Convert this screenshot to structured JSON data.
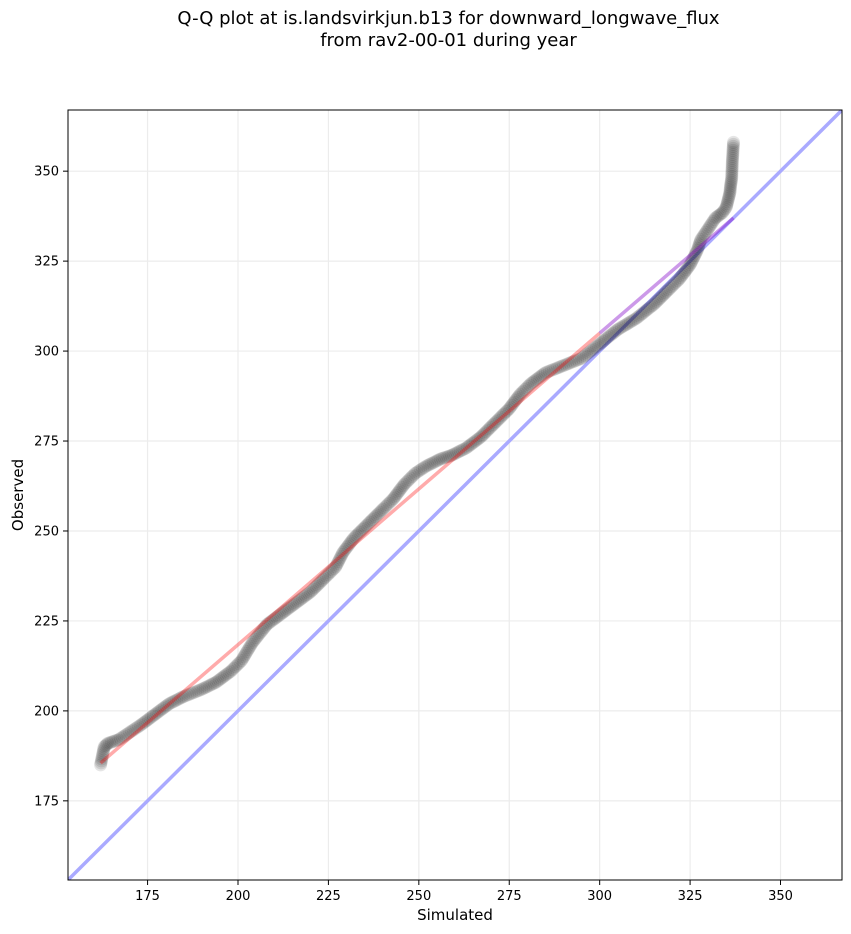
{
  "chart_data": {
    "type": "scatter",
    "title_line1": "Q-Q plot at is.landsvirkjun.b13 for downward_longwave_flux",
    "title_line2": "from rav2-00-01 during year",
    "xlabel": "Simulated",
    "ylabel": "Observed",
    "xlim": [
      153,
      367
    ],
    "ylim": [
      153,
      367
    ],
    "xticks": [
      175,
      200,
      225,
      250,
      275,
      300,
      325,
      350
    ],
    "yticks": [
      175,
      200,
      225,
      250,
      275,
      300,
      325,
      350
    ],
    "grid": true,
    "reference_line": {
      "from": [
        153,
        153
      ],
      "to": [
        367,
        367
      ],
      "color": "#aaaaff"
    },
    "fit_line": {
      "from": [
        162,
        185.5
      ],
      "to": [
        337,
        337
      ],
      "color": "#ff0000"
    },
    "fit_line_upper_color": "#7f00c8",
    "marker_color": "#000000",
    "qq_curve": [
      [
        162,
        185
      ],
      [
        163,
        190
      ],
      [
        164,
        191
      ],
      [
        167,
        192
      ],
      [
        170,
        194
      ],
      [
        173,
        196
      ],
      [
        177,
        199
      ],
      [
        181,
        202
      ],
      [
        185,
        204
      ],
      [
        190,
        206
      ],
      [
        194,
        208
      ],
      [
        198,
        211
      ],
      [
        201,
        214
      ],
      [
        204,
        219
      ],
      [
        208,
        224
      ],
      [
        212,
        227
      ],
      [
        216,
        230
      ],
      [
        220,
        233
      ],
      [
        224,
        237
      ],
      [
        227,
        240
      ],
      [
        229,
        244
      ],
      [
        232,
        248
      ],
      [
        236,
        252
      ],
      [
        240,
        256
      ],
      [
        243,
        259
      ],
      [
        246,
        263
      ],
      [
        249,
        266
      ],
      [
        252,
        268
      ],
      [
        256,
        270
      ],
      [
        259,
        271
      ],
      [
        263,
        273
      ],
      [
        267,
        276
      ],
      [
        271,
        280
      ],
      [
        275,
        284
      ],
      [
        278,
        288
      ],
      [
        281,
        291
      ],
      [
        285,
        294
      ],
      [
        290,
        296
      ],
      [
        295,
        298
      ],
      [
        300,
        302
      ],
      [
        305,
        306
      ],
      [
        310,
        309
      ],
      [
        315,
        313
      ],
      [
        319,
        317
      ],
      [
        322,
        320
      ],
      [
        325,
        324
      ],
      [
        327,
        328
      ],
      [
        328,
        331
      ],
      [
        330,
        334
      ],
      [
        332,
        337
      ],
      [
        334,
        338.5
      ],
      [
        335,
        340
      ],
      [
        335.5,
        342
      ],
      [
        336,
        344
      ],
      [
        336.2,
        346
      ],
      [
        336.5,
        348
      ],
      [
        336.7,
        353
      ],
      [
        337,
        358
      ]
    ]
  }
}
